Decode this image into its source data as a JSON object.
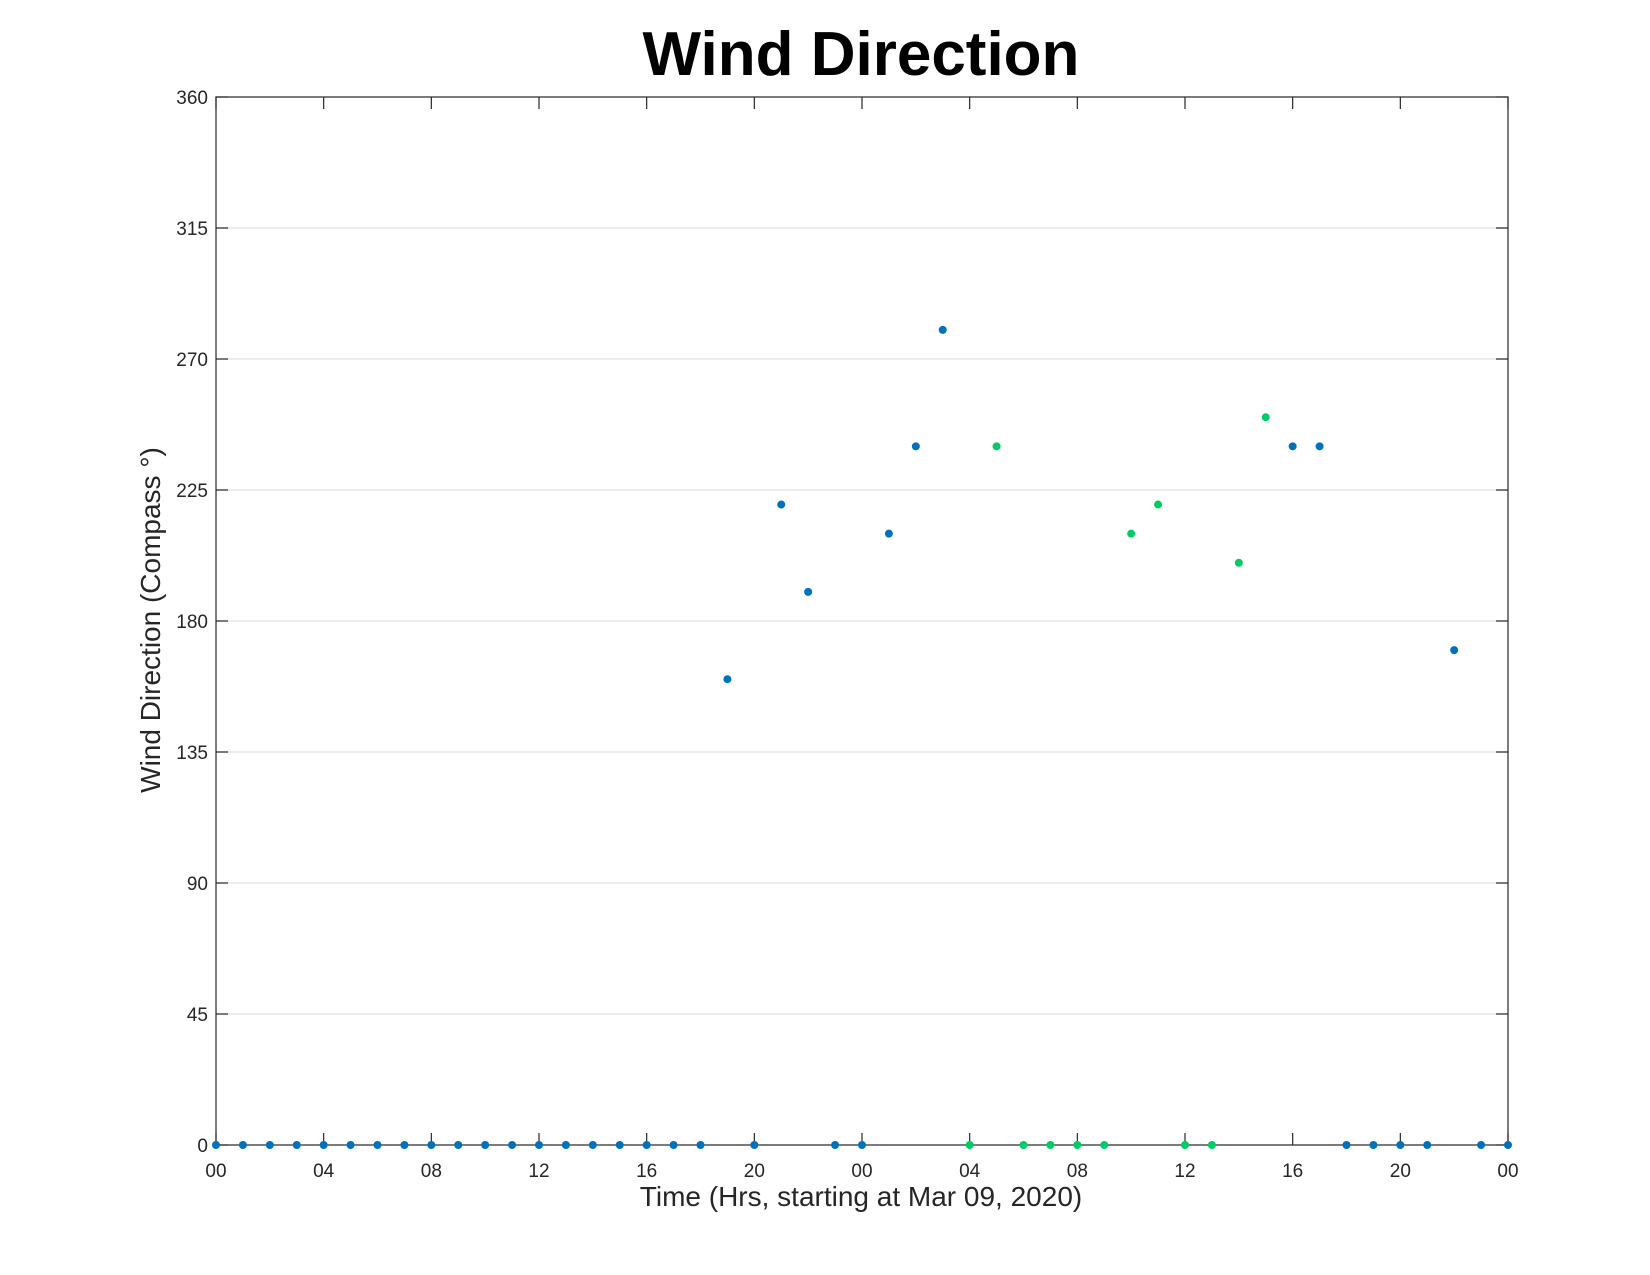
{
  "chart_data": {
    "type": "scatter",
    "title": "Wind Direction",
    "xlabel": "Time (Hrs, starting at Mar 09, 2020)",
    "ylabel": "Wind Direction (Compass °)",
    "x_unit": "hours",
    "xlim": [
      0,
      48
    ],
    "ylim": [
      0,
      360
    ],
    "x_ticks": [
      0,
      4,
      8,
      12,
      16,
      20,
      24,
      28,
      32,
      36,
      40,
      44,
      48
    ],
    "x_tick_labels": [
      "00",
      "04",
      "08",
      "12",
      "16",
      "20",
      "00",
      "04",
      "08",
      "12",
      "16",
      "20",
      "00"
    ],
    "y_ticks": [
      0,
      45,
      90,
      135,
      180,
      225,
      270,
      315,
      360
    ],
    "y_tick_labels": [
      "0",
      "45",
      "90",
      "135",
      "180",
      "225",
      "270",
      "315",
      "360"
    ],
    "grid": "horizontal",
    "legend": "none",
    "series": [
      {
        "color": "#0072BD",
        "x": [
          0,
          1,
          2,
          3,
          4,
          5,
          6,
          7,
          8,
          9,
          10,
          11,
          12,
          13,
          14,
          15,
          16,
          17,
          18,
          19,
          20,
          21,
          22,
          23,
          24,
          25,
          26,
          27,
          40,
          41,
          42,
          43,
          44,
          45,
          46,
          47,
          48
        ],
        "y": [
          0,
          0,
          0,
          0,
          0,
          0,
          0,
          0,
          0,
          0,
          0,
          0,
          0,
          0,
          0,
          0,
          0,
          0,
          0,
          160,
          0,
          220,
          190,
          0,
          0,
          210,
          240,
          280,
          240,
          240,
          0,
          0,
          0,
          0,
          170,
          0,
          0
        ]
      },
      {
        "color": "#00CC66",
        "x": [
          28,
          29,
          30,
          31,
          32,
          33,
          34,
          35,
          36,
          37,
          38,
          39
        ],
        "y": [
          0,
          240,
          0,
          0,
          0,
          0,
          210,
          220,
          0,
          0,
          200,
          250
        ]
      }
    ]
  }
}
